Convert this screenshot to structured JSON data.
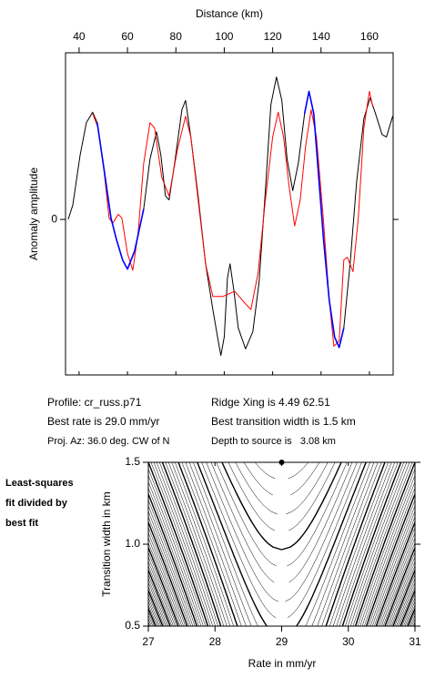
{
  "chart_data": [
    {
      "type": "line",
      "xlabel": "Distance (km)",
      "ylabel": "Anomaly amplitude",
      "xlim": [
        34.4,
        169.8
      ],
      "xticks": [
        40,
        60,
        80,
        100,
        120,
        140,
        160
      ],
      "ylim": [
        -1.19,
        1.275
      ],
      "yticks": [
        0
      ],
      "series": [
        {
          "color": "#000000",
          "x": [
            35.5,
            37.4,
            40.4,
            43,
            45.6,
            47.5,
            50.5,
            53.2,
            55.4,
            58,
            60,
            63,
            66.7,
            69.3,
            72,
            73.8,
            75.7,
            77.2,
            79.5,
            82.5,
            84,
            86.2,
            89.2,
            92.3,
            95.3,
            97.5,
            98.6,
            100,
            101.3,
            102.4,
            104,
            105.8,
            108.8,
            111.8,
            114.4,
            117,
            119.3,
            121.6,
            123.8,
            126,
            128.3,
            130.6,
            133.2,
            135,
            137,
            138.9,
            141.1,
            143.4,
            145.6,
            147.5,
            149.4,
            152,
            154.7,
            157.7,
            160.3,
            162.5,
            165.2,
            167,
            169.6
          ],
          "values": [
            0,
            0.11,
            0.49,
            0.74,
            0.82,
            0.74,
            0.36,
            0.01,
            -0.15,
            -0.31,
            -0.38,
            -0.24,
            0.08,
            0.46,
            0.67,
            0.49,
            0.18,
            0.15,
            0.43,
            0.84,
            0.91,
            0.63,
            0.18,
            -0.34,
            -0.69,
            -0.93,
            -1.04,
            -0.9,
            -0.45,
            -0.34,
            -0.55,
            -0.83,
            -0.99,
            -0.86,
            -0.48,
            0.22,
            0.88,
            1.09,
            0.91,
            0.46,
            0.22,
            0.43,
            0.81,
            0.98,
            0.81,
            0.36,
            -0.17,
            -0.62,
            -0.9,
            -0.98,
            -0.83,
            -0.34,
            0.29,
            0.77,
            0.93,
            0.81,
            0.65,
            0.63,
            0.79
          ]
        },
        {
          "color": "#ff0000",
          "x": [
            45.6,
            47.9,
            50.2,
            52.4,
            53.9,
            56.2,
            57.7,
            60,
            62.2,
            64.4,
            66.7,
            69.3,
            71.2,
            74.2,
            77.2,
            80.6,
            84,
            86.2,
            89.2,
            92.3,
            95.3,
            99.4,
            104.3,
            108,
            111,
            114,
            117,
            120,
            122.3,
            124.5,
            126.8,
            129.1,
            131.4,
            133.6,
            135.9,
            138.1,
            140.8,
            143.4,
            145.3,
            147.5,
            149.4,
            150.9,
            153.2,
            155.4,
            157.7,
            160,
            161.4
          ],
          "values": [
            0.81,
            0.7,
            0.39,
            0.01,
            -0.03,
            0.04,
            0.01,
            -0.26,
            -0.39,
            -0.1,
            0.43,
            0.74,
            0.7,
            0.32,
            0.18,
            0.53,
            0.79,
            0.63,
            0.15,
            -0.34,
            -0.59,
            -0.59,
            -0.55,
            -0.63,
            -0.69,
            -0.41,
            0.15,
            0.63,
            0.82,
            0.63,
            0.25,
            -0.05,
            0.15,
            0.56,
            0.84,
            0.63,
            0.04,
            -0.62,
            -0.97,
            -0.93,
            -0.31,
            -0.29,
            -0.4,
            0.01,
            0.7,
            0.98,
            0.86
          ]
        },
        {
          "color": "#0000ff",
          "x": [
            47.5,
            50.5,
            53.2,
            55.4,
            58,
            60,
            63,
            66.7,
            100,
            133.2,
            135,
            137,
            138.9,
            141.1,
            143.4,
            145.6,
            147.5,
            149.4
          ],
          "values": [
            0.74,
            0.36,
            0.01,
            -0.15,
            -0.31,
            -0.38,
            -0.24,
            0.08,
            null,
            0.81,
            0.98,
            0.81,
            0.36,
            -0.17,
            -0.62,
            -0.9,
            -0.98,
            -0.83
          ]
        }
      ]
    },
    {
      "type": "contour",
      "xlabel": "Rate in mm/yr",
      "ylabel": "Transition width in km",
      "xlim": [
        27,
        31
      ],
      "xticks": [
        27,
        28,
        29,
        30,
        31
      ],
      "ylim": [
        0.5,
        1.5
      ],
      "yticks": [
        0.5,
        {
          "value": 1,
          "label": "1.0"
        },
        1.5
      ],
      "best_fit": {
        "x": 29,
        "y": 1.5
      }
    }
  ],
  "profile_info": {
    "left": [
      "Profile: cr_russ.p71",
      "Best rate is 29.0 mm/yr",
      "Proj. Az: 36.0 deg. CW of N"
    ],
    "right": [
      "Ridge Xing is 4.49 62.51",
      "Best transition width is 1.5 km",
      "Depth to source is   3.08 km"
    ]
  },
  "side_label": [
    "Least-squares",
    "fit divided by",
    "best fit"
  ]
}
